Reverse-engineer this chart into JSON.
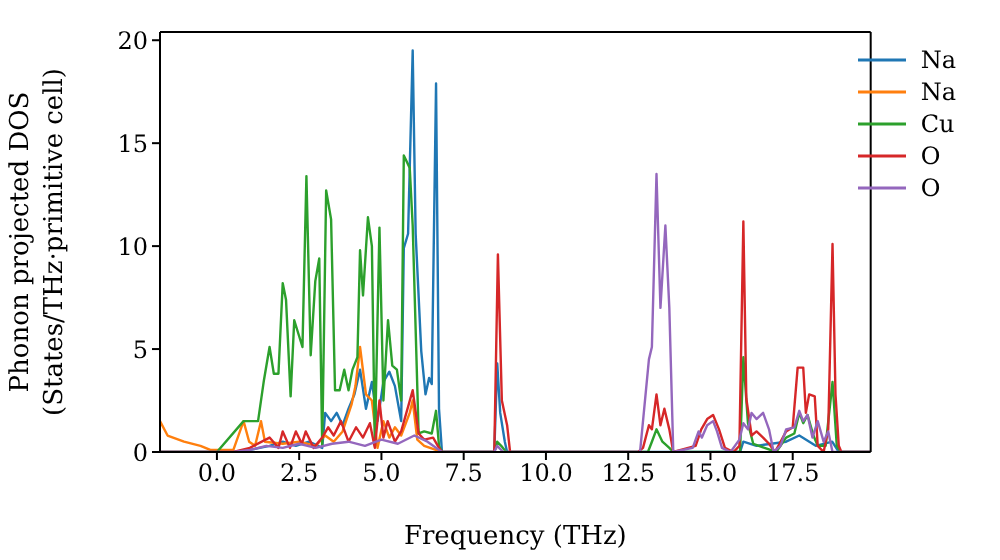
{
  "chart_data": {
    "type": "line",
    "xlabel": "Frequency (THz)",
    "ylabel": "Phonon projected DOS\n(States/THz·primitive cell)",
    "xlim": [
      -1.73,
      19.87
    ],
    "ylim": [
      0,
      20.4
    ],
    "xticks": [
      {
        "value": 0,
        "label": "0.0"
      },
      2.5,
      {
        "value": 5,
        "label": "5.0"
      },
      7.5,
      {
        "value": 10,
        "label": "10.0"
      },
      12.5,
      {
        "value": 15,
        "label": "15.0"
      },
      17.5
    ],
    "yticks": [
      0,
      5,
      10,
      15,
      20
    ],
    "legend": "top right",
    "marker": "none",
    "line_style": "solid",
    "series": [
      {
        "name": "Na",
        "color": "#1f77b4",
        "x": [
          -1.73,
          0.5,
          1.0,
          1.6,
          2.0,
          2.4,
          2.8,
          3.2,
          3.29,
          3.47,
          3.64,
          3.82,
          4.0,
          4.18,
          4.35,
          4.53,
          4.71,
          4.88,
          5.06,
          5.24,
          5.41,
          5.6,
          5.68,
          5.81,
          5.95,
          6.04,
          6.21,
          6.34,
          6.45,
          6.53,
          6.66,
          6.75,
          6.84,
          8.43,
          8.52,
          8.61,
          8.75,
          8.82,
          15.9,
          16.0,
          16.4,
          17.3,
          17.7,
          18.2,
          18.7,
          18.9,
          19.87
        ],
        "values": [
          0,
          0,
          0.1,
          0.3,
          0.5,
          0.3,
          0.5,
          0.2,
          1.9,
          1.5,
          1.9,
          1.3,
          2.1,
          2.8,
          4.0,
          2.1,
          3.4,
          1.5,
          3.4,
          3.9,
          3.2,
          1.5,
          9.9,
          10.6,
          19.5,
          10.6,
          4.9,
          2.8,
          3.6,
          3.3,
          17.9,
          2.1,
          0,
          0,
          4.3,
          1.9,
          0.5,
          0,
          0,
          0.5,
          0.3,
          0.5,
          0.8,
          0.3,
          0.5,
          0,
          0
        ]
      },
      {
        "name": "Na",
        "color": "#ff7f0e",
        "x": [
          -1.73,
          -1.5,
          -1.0,
          -0.5,
          -0.2,
          0.5,
          0.81,
          0.98,
          1.16,
          1.34,
          1.46,
          2.0,
          2.5,
          3.0,
          3.29,
          3.55,
          3.82,
          4.09,
          4.21,
          4.35,
          4.53,
          4.71,
          4.88,
          5.06,
          5.24,
          5.41,
          5.6,
          5.86,
          5.95,
          6.09,
          6.3,
          6.84
        ],
        "values": [
          1.5,
          0.8,
          0.5,
          0.3,
          0.1,
          0.1,
          1.5,
          0.5,
          0.3,
          1.5,
          0.5,
          0.4,
          0.5,
          0.3,
          0.8,
          0.5,
          1.0,
          2.3,
          3.2,
          5.1,
          2.8,
          2.5,
          0.2,
          1.5,
          0.7,
          1.2,
          0.8,
          1.9,
          2.5,
          0.6,
          0.3,
          0
        ]
      },
      {
        "name": "Cu",
        "color": "#2ca02c",
        "x": [
          -1.73,
          0.0,
          0.81,
          1.07,
          1.25,
          1.43,
          1.6,
          1.73,
          1.87,
          2.0,
          2.1,
          2.24,
          2.35,
          2.6,
          2.72,
          2.85,
          2.99,
          3.11,
          3.2,
          3.32,
          3.47,
          3.59,
          3.73,
          3.87,
          4.0,
          4.12,
          4.27,
          4.35,
          4.44,
          4.59,
          4.71,
          4.8,
          4.94,
          5.06,
          5.2,
          5.33,
          5.47,
          5.6,
          5.68,
          5.86,
          5.95,
          6.13,
          6.3,
          6.53,
          6.66,
          6.75,
          6.84,
          8.43,
          8.52,
          8.64,
          8.79,
          13.1,
          13.22,
          13.36,
          13.54,
          13.75,
          13.87,
          15.9,
          16.0,
          16.14,
          16.3,
          17.0,
          17.3,
          17.55,
          17.7,
          17.82,
          17.95,
          18.13,
          18.26,
          18.5,
          18.71,
          18.84,
          18.95,
          19.87
        ],
        "values": [
          0,
          0,
          1.5,
          1.5,
          1.5,
          3.5,
          5.1,
          3.8,
          3.8,
          8.2,
          7.4,
          2.7,
          6.4,
          5.1,
          13.4,
          4.7,
          8.3,
          9.4,
          0.3,
          12.7,
          11.3,
          3.0,
          3.0,
          4.0,
          3.0,
          4.0,
          4.6,
          9.8,
          7.6,
          11.4,
          10.0,
          0.3,
          10.9,
          2.5,
          6.4,
          4.2,
          4.0,
          2.5,
          14.4,
          13.8,
          11.0,
          0.9,
          1.0,
          0.9,
          2.0,
          0.3,
          0,
          0,
          0.5,
          0.3,
          0,
          0,
          0.5,
          1.1,
          0.5,
          0.2,
          0,
          0,
          4.6,
          1.4,
          0.4,
          0,
          0.7,
          0.9,
          1.9,
          1.4,
          1.8,
          0.8,
          0.3,
          0.3,
          3.4,
          0.3,
          0,
          0
        ]
      },
      {
        "name": "O",
        "color": "#d62728",
        "x": [
          -1.73,
          0.5,
          1.0,
          1.6,
          1.87,
          2.0,
          2.22,
          2.4,
          2.58,
          2.7,
          2.94,
          3.2,
          3.38,
          3.55,
          3.77,
          4.0,
          4.23,
          4.44,
          4.65,
          4.8,
          4.94,
          5.06,
          5.19,
          5.41,
          5.6,
          5.95,
          6.13,
          6.3,
          6.57,
          6.75,
          6.84,
          8.43,
          8.54,
          8.66,
          8.82,
          8.91,
          12.8,
          12.95,
          13.13,
          13.22,
          13.36,
          13.48,
          13.6,
          13.75,
          13.87,
          14.55,
          14.72,
          14.9,
          15.08,
          15.26,
          15.44,
          15.7,
          15.88,
          16.0,
          16.09,
          16.25,
          16.4,
          16.6,
          16.78,
          16.96,
          17.13,
          17.3,
          17.5,
          17.65,
          17.82,
          17.9,
          18.0,
          18.17,
          18.26,
          18.44,
          18.58,
          18.71,
          18.8,
          18.9,
          18.98,
          19.87
        ],
        "values": [
          0,
          0,
          0.2,
          0.7,
          0.2,
          1.0,
          0.2,
          1.0,
          0.4,
          1.0,
          0.2,
          0.7,
          1.2,
          0.8,
          1.5,
          0.5,
          1.2,
          0.7,
          1.4,
          0.2,
          2.5,
          0.7,
          1.5,
          0.5,
          1.0,
          3.0,
          0.9,
          0.6,
          0.7,
          0.2,
          0,
          0,
          9.6,
          2.5,
          1.3,
          0,
          0,
          0.2,
          1.3,
          1.1,
          2.8,
          1.3,
          2.1,
          1.1,
          0,
          0.3,
          1.1,
          1.6,
          1.8,
          1.1,
          0.2,
          0,
          0.3,
          11.2,
          2.6,
          0.8,
          1.0,
          0.7,
          0.4,
          0,
          0.5,
          1.0,
          1.2,
          4.1,
          4.1,
          1.9,
          2.8,
          2.7,
          0.3,
          0,
          1.1,
          10.1,
          2.8,
          0.3,
          0,
          0
        ]
      },
      {
        "name": "O",
        "color": "#9467bd",
        "x": [
          -1.73,
          0.5,
          1.0,
          1.5,
          2.0,
          2.5,
          3.0,
          3.5,
          4.0,
          4.5,
          5.0,
          5.5,
          6.0,
          6.4,
          6.84,
          8.43,
          8.52,
          8.7,
          12.86,
          13.13,
          13.22,
          13.36,
          13.48,
          13.63,
          13.75,
          13.87,
          14.46,
          14.64,
          14.74,
          14.9,
          15.08,
          15.2,
          15.35,
          15.61,
          15.88,
          16.0,
          16.14,
          16.25,
          16.4,
          16.6,
          16.78,
          16.92,
          17.13,
          17.3,
          17.55,
          17.7,
          17.82,
          17.95,
          18.1,
          18.26,
          18.44,
          18.58,
          18.71,
          19.87
        ],
        "values": [
          0,
          0,
          0.1,
          0.3,
          0.2,
          0.4,
          0.2,
          0.4,
          0.5,
          0.3,
          0.6,
          0.4,
          0.8,
          0.5,
          0,
          0,
          0.3,
          0,
          0,
          4.5,
          5.1,
          13.5,
          7.0,
          11.0,
          7.0,
          0,
          0.2,
          1.0,
          0.7,
          1.3,
          1.5,
          1.0,
          0.2,
          0,
          0.6,
          1.4,
          1.1,
          1.9,
          1.6,
          1.9,
          1.1,
          0,
          0.3,
          1.1,
          1.2,
          2.0,
          1.5,
          1.8,
          0.7,
          1.5,
          0.5,
          1.0,
          0,
          0
        ]
      }
    ]
  }
}
